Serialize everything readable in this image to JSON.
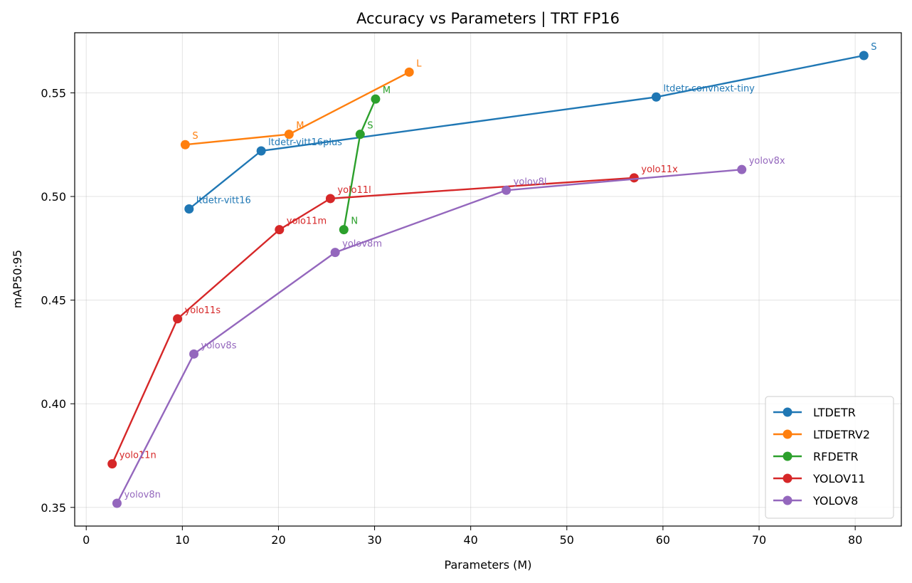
{
  "chart_data": {
    "type": "line",
    "title": "Accuracy vs Parameters  |  TRT FP16",
    "xlabel": "Parameters (M)",
    "ylabel": "mAP50:95",
    "xlim": [
      -1.2,
      84.8
    ],
    "ylim": [
      0.341,
      0.579
    ],
    "xticks": [
      0,
      10,
      20,
      30,
      40,
      50,
      60,
      70,
      80
    ],
    "yticks": [
      0.35,
      0.4,
      0.45,
      0.5,
      0.55
    ],
    "xtick_labels": [
      "0",
      "10",
      "20",
      "30",
      "40",
      "50",
      "60",
      "70",
      "80"
    ],
    "ytick_labels": [
      "0.35",
      "0.40",
      "0.45",
      "0.50",
      "0.55"
    ],
    "grid": true,
    "legend_position": "lower-right",
    "series": [
      {
        "name": "LTDETR",
        "color": "#1f77b4",
        "points": [
          {
            "x": 10.7,
            "y": 0.494,
            "label": "ltdetr-vitt16"
          },
          {
            "x": 18.2,
            "y": 0.522,
            "label": "ltdetr-vitt16plus"
          },
          {
            "x": 59.3,
            "y": 0.548,
            "label": "ltdetr-convnext-tiny"
          },
          {
            "x": 80.9,
            "y": 0.568,
            "label": "S"
          }
        ]
      },
      {
        "name": "LTDETRV2",
        "color": "#ff7f0e",
        "points": [
          {
            "x": 10.3,
            "y": 0.525,
            "label": "S"
          },
          {
            "x": 21.1,
            "y": 0.53,
            "label": "M"
          },
          {
            "x": 33.6,
            "y": 0.56,
            "label": "L"
          }
        ]
      },
      {
        "name": "RFDETR",
        "color": "#2ca02c",
        "points": [
          {
            "x": 26.8,
            "y": 0.484,
            "label": "N"
          },
          {
            "x": 28.5,
            "y": 0.53,
            "label": "S"
          },
          {
            "x": 30.1,
            "y": 0.547,
            "label": "M"
          }
        ]
      },
      {
        "name": "YOLOV11",
        "color": "#d62728",
        "points": [
          {
            "x": 2.7,
            "y": 0.371,
            "label": "yolo11n"
          },
          {
            "x": 9.5,
            "y": 0.441,
            "label": "yolo11s"
          },
          {
            "x": 20.1,
            "y": 0.484,
            "label": "yolo11m"
          },
          {
            "x": 25.4,
            "y": 0.499,
            "label": "yolo11l"
          },
          {
            "x": 57.0,
            "y": 0.509,
            "label": "yolo11x"
          }
        ]
      },
      {
        "name": "YOLOV8",
        "color": "#9467bd",
        "points": [
          {
            "x": 3.2,
            "y": 0.352,
            "label": "yolov8n"
          },
          {
            "x": 11.2,
            "y": 0.424,
            "label": "yolov8s"
          },
          {
            "x": 25.9,
            "y": 0.473,
            "label": "yolov8m"
          },
          {
            "x": 43.7,
            "y": 0.503,
            "label": "yolov8l"
          },
          {
            "x": 68.2,
            "y": 0.513,
            "label": "yolov8x"
          }
        ]
      }
    ]
  }
}
